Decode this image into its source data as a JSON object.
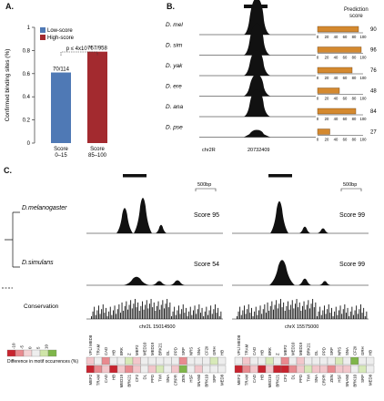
{
  "figure": {
    "panels": {
      "a": "A.",
      "b": "B.",
      "c": "C."
    }
  },
  "panel_a": {
    "ylabel": "Confirmed binding sites (%)",
    "yticks": [
      "0",
      "0.2",
      "0.4",
      "0.6",
      "0.8",
      "1"
    ],
    "legend": [
      {
        "label": "Low-score",
        "color": "#4f79b5"
      },
      {
        "label": "High-score",
        "color": "#a32a2f"
      }
    ],
    "pvalue": "p ≤ 4x10⁻⁶",
    "chart_data": {
      "type": "bar",
      "categories": [
        "Score 0–15",
        "Score 85–100"
      ],
      "category_lines": [
        [
          "Score",
          "0–15"
        ],
        [
          "Score",
          "85–100"
        ]
      ],
      "values": [
        0.61,
        0.79
      ],
      "value_labels": [
        "70/114",
        "757/958"
      ],
      "colors": [
        "#4f79b5",
        "#a32a2f"
      ],
      "ylabel": "Confirmed binding sites (%)",
      "ylim": [
        0,
        1
      ]
    }
  },
  "panel_b": {
    "score_header_line1": "Prediction",
    "score_header_line2": "score",
    "species": [
      {
        "name": "D. mel",
        "score": 90
      },
      {
        "name": "D. sim",
        "score": 96
      },
      {
        "name": "D. yak",
        "score": 76
      },
      {
        "name": "D. ere",
        "score": 48
      },
      {
        "name": "D. ana",
        "score": 84
      },
      {
        "name": "D. pse",
        "score": 27
      }
    ],
    "bar_ticks": [
      "0",
      "20",
      "40",
      "60",
      "80",
      "100"
    ],
    "chrom": "chr2R",
    "coord": "20732409",
    "bar_color": "#d4892f"
  },
  "panel_c": {
    "species": [
      "D.melanogaster",
      "D.simulans",
      "Conservation"
    ],
    "scale_bar": "500bp",
    "left": {
      "scores": [
        "Score 95",
        "Score 54"
      ],
      "coord": "chr2L 15014500"
    },
    "right": {
      "scores": [
        "Score 99",
        "Score 99"
      ],
      "coord": "chrX 15575000"
    },
    "legend_ticks": [
      "-10",
      "-5",
      "0",
      "5",
      "10"
    ],
    "legend_colors": [
      "#c8242f",
      "#e88a8f",
      "#f4d3d5",
      "#eeeeee",
      "#cfe5a8",
      "#7fb64a"
    ],
    "legend_title": "Difference in motif occurrences (%)",
    "left_motifs_top": [
      "VFL/ MED8",
      "TRAM",
      "CAD",
      "HB",
      "BRK",
      "Z",
      "MEF2",
      "MED10",
      "MED19",
      "BRK21",
      "DL",
      "PPD",
      "SRP",
      "NRS",
      "SNA",
      "CF2II",
      "GRH",
      "HB"
    ],
    "left_motifs_bottom": [
      "MEF2",
      "TRAM",
      "CAD",
      "HB",
      "MED19",
      "BRK21",
      "CF2",
      "DL",
      "PPD",
      "TWI",
      "SNA",
      "CRPR",
      "ZEN",
      "HSF",
      "SNA50",
      "BRK10",
      "SRP",
      "MED8"
    ],
    "right_motifs_top": [
      "VFL/ MED8",
      "TRAM",
      "CAD",
      "HB",
      "BRK",
      "Z",
      "MEF2",
      "MED10",
      "MED19",
      "BRK21",
      "DL",
      "PPD",
      "SRP",
      "NRS",
      "SNA",
      "CF2II",
      "GRH",
      "HB"
    ],
    "right_motifs_bottom": [
      "MEF2",
      "TRAM",
      "CAD",
      "HB",
      "MED19",
      "BRK21",
      "CF2",
      "DL",
      "PPD",
      "TWI",
      "SNA",
      "CRPR",
      "ZEN",
      "HSF",
      "SNA50",
      "BRK10",
      "SRP",
      "MED8"
    ],
    "left_heat_top": [
      "#f2c7cb",
      "#eeeeee",
      "#e88a8f",
      "#eeeeee",
      "#eeeeee",
      "#d7e9b8",
      "#f2c7cb",
      "#eeeeee",
      "#eeeeee",
      "#eeeeee",
      "#eeeeee",
      "#eeeeee",
      "#e88a8f",
      "#eeeeee",
      "#eeeeee",
      "#eeeeee",
      "#d7e9b8",
      "#eeeeee"
    ],
    "left_heat_bottom": [
      "#c8242f",
      "#e88a8f",
      "#f2c7cb",
      "#c8242f",
      "#f2c7cb",
      "#e88a8f",
      "#f2c7cb",
      "#eeeeee",
      "#f2c7cb",
      "#d7e9b8",
      "#eeeeee",
      "#f2c7cb",
      "#7fb64a",
      "#eeeeee",
      "#f2c7cb",
      "#eeeeee",
      "#eeeeee",
      "#eeeeee"
    ],
    "right_heat_top": [
      "#eeeeee",
      "#f2c7cb",
      "#eeeeee",
      "#eeeeee",
      "#d7e9b8",
      "#eeeeee",
      "#e88a8f",
      "#eeeeee",
      "#f2c7cb",
      "#eeeeee",
      "#eeeeee",
      "#eeeeee",
      "#eeeeee",
      "#d7e9b8",
      "#eeeeee",
      "#7fb64a",
      "#eeeeee",
      "#eeeeee"
    ],
    "right_heat_bottom": [
      "#c8242f",
      "#e88a8f",
      "#f2c7cb",
      "#c8242f",
      "#f2c7cb",
      "#c8242f",
      "#c8242f",
      "#e88a8f",
      "#f2c7cb",
      "#d7e9b8",
      "#f2c7cb",
      "#f2c7cb",
      "#e88a8f",
      "#f2c7cb",
      "#f2c7cb",
      "#eeeeee",
      "#d7e9b8",
      "#eeeeee"
    ]
  }
}
